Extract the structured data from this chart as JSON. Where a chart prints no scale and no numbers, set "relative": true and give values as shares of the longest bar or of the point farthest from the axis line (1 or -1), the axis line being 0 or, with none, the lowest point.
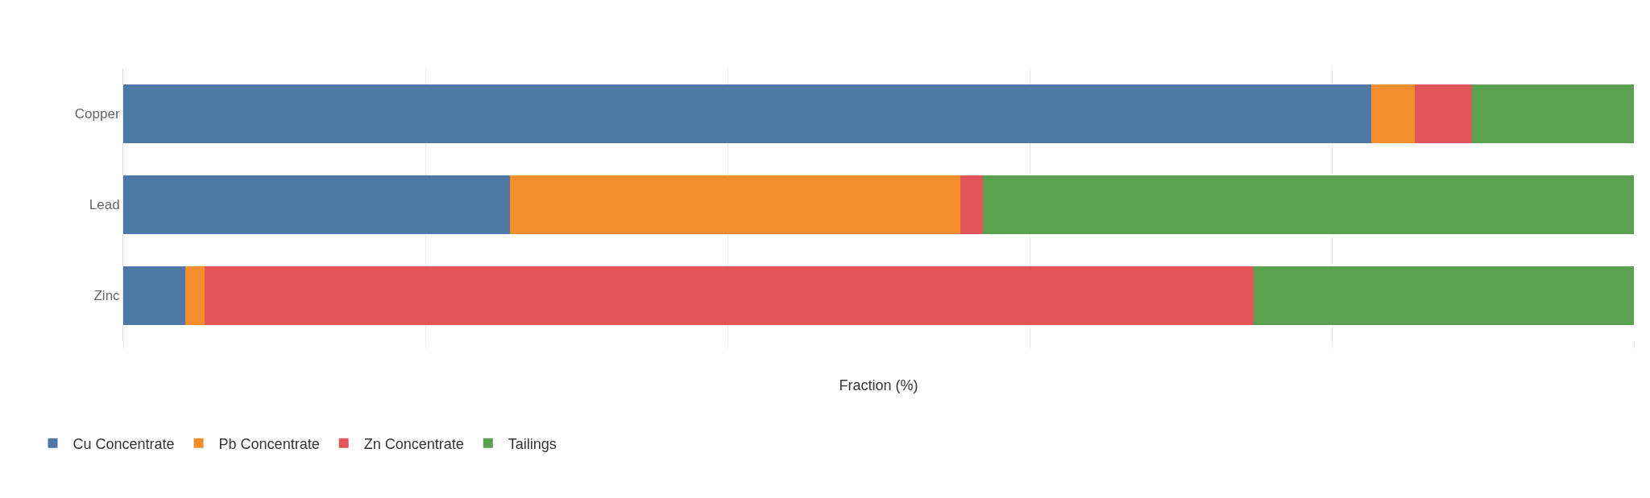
{
  "chart_data": {
    "type": "bar",
    "orientation": "horizontal",
    "stacked": true,
    "relative": true,
    "xlabel": "Fraction (%)",
    "categories": [
      "Copper",
      "Lead",
      "Zinc"
    ],
    "series": [
      {
        "name": "Cu Concentrate",
        "color": "#4e79a7",
        "values": [
          0.826,
          0.256,
          0.041
        ]
      },
      {
        "name": "Pb Concentrate",
        "color": "#f28e2b",
        "values": [
          0.029,
          0.298,
          0.013
        ]
      },
      {
        "name": "Zn Concentrate",
        "color": "#e15759",
        "values": [
          0.038,
          0.015,
          0.694
        ]
      },
      {
        "name": "Tailings",
        "color": "#59a14f",
        "values": [
          0.107,
          0.431,
          0.252
        ]
      }
    ],
    "grid": "x",
    "legend": "bottom left"
  }
}
